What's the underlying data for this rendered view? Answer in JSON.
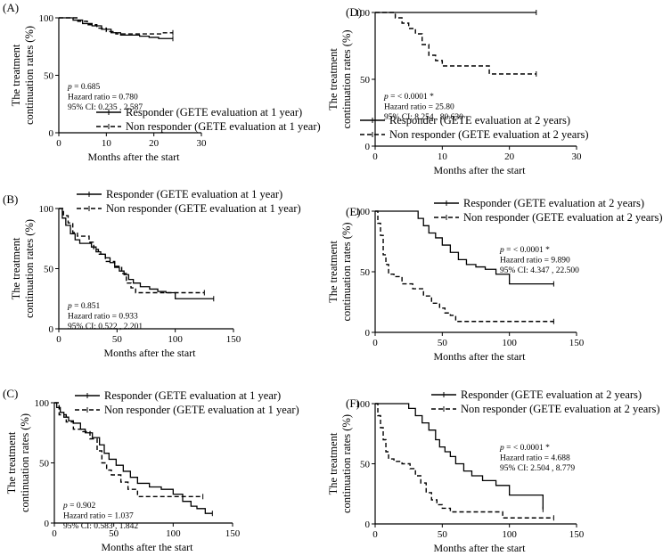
{
  "chart_data": [
    {
      "panel": "(A)",
      "type": "line",
      "step": true,
      "xlabel": "Months after the start",
      "ylabel": [
        "The treatment",
        "continuation rates (%)"
      ],
      "xlim": [
        0,
        30
      ],
      "ylim": [
        0,
        100
      ],
      "xticks": [
        0,
        10,
        20,
        30
      ],
      "yticks": [
        0,
        50,
        100
      ],
      "legend_loc": "bottom-left",
      "stats": [
        "p = 0.685",
        "Hazard ratio = 0.780",
        "95% CI:  0.235 , 2.587"
      ],
      "series": [
        {
          "name": "Responder (GETE evaluation at 1 year)",
          "style": "solid",
          "x": [
            0,
            3,
            5,
            7,
            9,
            11,
            13,
            15,
            17,
            19,
            21,
            24
          ],
          "y": [
            100,
            98,
            95,
            93,
            90,
            87,
            85,
            85,
            84,
            83,
            82,
            82
          ]
        },
        {
          "name": "Non responder (GETE evaluation at 1 year)",
          "style": "dashed",
          "x": [
            0,
            2,
            4,
            6,
            8,
            10,
            12,
            18,
            20,
            22,
            24
          ],
          "y": [
            100,
            100,
            97,
            94,
            91,
            88,
            86,
            86,
            86,
            87,
            87
          ]
        }
      ]
    },
    {
      "panel": "(B)",
      "type": "line",
      "step": true,
      "xlabel": "Months after the start",
      "ylabel": [
        "The treatment",
        "continuation rates (%)"
      ],
      "xlim": [
        0,
        150
      ],
      "ylim": [
        0,
        100
      ],
      "xticks": [
        0,
        50,
        100,
        150
      ],
      "yticks": [
        0,
        50,
        100
      ],
      "legend_loc": "top-right",
      "stats": [
        "p = 0.851",
        "Hazard ratio = 0.933",
        "95% CI:  0.522 , 2.201"
      ],
      "series": [
        {
          "name": "Responder (GETE evaluation at 1 year)",
          "style": "solid",
          "x": [
            0,
            3,
            6,
            10,
            14,
            18,
            24,
            28,
            32,
            36,
            40,
            44,
            48,
            52,
            56,
            60,
            64,
            70,
            78,
            85,
            92,
            100,
            110,
            120,
            133
          ],
          "y": [
            100,
            92,
            86,
            79,
            74,
            71,
            71,
            68,
            64,
            62,
            59,
            55,
            51,
            48,
            45,
            41,
            38,
            35,
            33,
            31,
            30,
            25,
            25,
            25,
            25
          ]
        },
        {
          "name": "Non responder (GETE evaluation at 1 year)",
          "style": "dashed",
          "x": [
            0,
            4,
            8,
            12,
            16,
            22,
            26,
            30,
            34,
            40,
            48,
            54,
            58,
            62,
            66,
            76,
            86,
            100,
            112,
            125
          ],
          "y": [
            100,
            94,
            88,
            80,
            77,
            77,
            72,
            66,
            62,
            56,
            52,
            46,
            38,
            34,
            30,
            30,
            30,
            30,
            30,
            30
          ]
        }
      ]
    },
    {
      "panel": "(C)",
      "type": "line",
      "step": true,
      "xlabel": "Months after the start",
      "ylabel": [
        "The treatment",
        "continuation rates (%)"
      ],
      "xlim": [
        0,
        150
      ],
      "ylim": [
        0,
        100
      ],
      "xticks": [
        0,
        50,
        100,
        150
      ],
      "yticks": [
        0,
        50,
        100
      ],
      "legend_loc": "top-right",
      "stats": [
        "p = 0.902",
        "Hazard ratio = 1.037",
        "95% CI:  0.583 , 1.842"
      ],
      "series": [
        {
          "name": "Responder (GETE evaluation at 1 year)",
          "style": "solid",
          "x": [
            0,
            2,
            5,
            8,
            12,
            16,
            22,
            26,
            32,
            38,
            42,
            46,
            52,
            58,
            64,
            70,
            80,
            90,
            100,
            108,
            115,
            120,
            127,
            133
          ],
          "y": [
            100,
            96,
            92,
            88,
            85,
            83,
            78,
            75,
            71,
            65,
            58,
            53,
            48,
            43,
            38,
            33,
            30,
            28,
            24,
            18,
            14,
            12,
            8,
            8
          ]
        },
        {
          "name": "Non responder (GETE evaluation at 1 year)",
          "style": "dashed",
          "x": [
            0,
            4,
            10,
            16,
            24,
            30,
            36,
            40,
            44,
            48,
            56,
            62,
            70,
            100,
            110,
            125
          ],
          "y": [
            100,
            90,
            84,
            78,
            76,
            70,
            60,
            50,
            44,
            40,
            34,
            28,
            22,
            22,
            22,
            22
          ]
        }
      ]
    },
    {
      "panel": "(D)",
      "type": "line",
      "step": true,
      "xlabel": "Months after the start",
      "ylabel": [
        "The treatment",
        "continuation rates (%)"
      ],
      "xlim": [
        0,
        30
      ],
      "ylim": [
        0,
        100
      ],
      "xticks": [
        0,
        10,
        20,
        30
      ],
      "yticks": [
        0,
        50,
        100
      ],
      "legend_loc": "bottom-left",
      "stats": [
        "p = < 0.0001 *",
        "Hazard ratio = 25.80",
        "95% CI:  8.254 , 80.630"
      ],
      "series": [
        {
          "name": "Responder (GETE evaluation at 2 years)",
          "style": "solid",
          "x": [
            0,
            24
          ],
          "y": [
            100,
            100
          ]
        },
        {
          "name": "Non responder (GETE evaluation at 2 years)",
          "style": "dashed",
          "x": [
            0,
            2,
            3,
            4,
            5,
            6,
            7,
            8,
            9,
            10,
            15,
            17,
            24
          ],
          "y": [
            100,
            100,
            96,
            92,
            88,
            84,
            76,
            68,
            64,
            60,
            60,
            54,
            54
          ]
        }
      ]
    },
    {
      "panel": "(E)",
      "type": "line",
      "step": true,
      "xlabel": "Months after the start",
      "ylabel": [
        "The treatment",
        "continuation rates (%)"
      ],
      "xlim": [
        0,
        150
      ],
      "ylim": [
        0,
        100
      ],
      "xticks": [
        0,
        50,
        100,
        150
      ],
      "yticks": [
        0,
        50,
        100
      ],
      "legend_loc": "top-right",
      "stats": [
        "p = < 0.0001 *",
        "Hazard ratio = 9.890",
        "95% CI:  4.347 , 22.500"
      ],
      "series": [
        {
          "name": "Responder (GETE evaluation at 2 years)",
          "style": "solid",
          "x": [
            0,
            28,
            32,
            36,
            40,
            45,
            50,
            56,
            62,
            68,
            75,
            82,
            90,
            100,
            110,
            120,
            133
          ],
          "y": [
            100,
            100,
            94,
            88,
            82,
            78,
            72,
            66,
            60,
            56,
            54,
            52,
            48,
            40,
            40,
            40,
            40
          ]
        },
        {
          "name": "Non responder (GETE evaluation at 2 years)",
          "style": "dashed",
          "x": [
            0,
            2,
            4,
            6,
            8,
            10,
            14,
            20,
            28,
            36,
            42,
            48,
            52,
            56,
            60,
            80,
            100,
            133
          ],
          "y": [
            100,
            90,
            80,
            64,
            56,
            48,
            46,
            40,
            36,
            30,
            24,
            20,
            16,
            14,
            9,
            9,
            9,
            9
          ]
        }
      ]
    },
    {
      "panel": "(F)",
      "type": "line",
      "step": true,
      "xlabel": "Months after the start",
      "ylabel": [
        "The treatment",
        "continuation rates (%)"
      ],
      "xlim": [
        0,
        150
      ],
      "ylim": [
        0,
        100
      ],
      "xticks": [
        0,
        50,
        100,
        150
      ],
      "yticks": [
        0,
        50,
        100
      ],
      "legend_loc": "top-right",
      "stats": [
        "p = < 0.0001 *",
        "Hazard ratio = 4.688",
        "95% CI:  2.504 , 8.779"
      ],
      "series": [
        {
          "name": "Responder (GETE evaluation at 2 years)",
          "style": "solid",
          "x": [
            0,
            20,
            25,
            30,
            35,
            40,
            45,
            48,
            52,
            56,
            60,
            66,
            72,
            80,
            90,
            100,
            110,
            120,
            125
          ],
          "y": [
            100,
            100,
            96,
            90,
            84,
            78,
            70,
            64,
            60,
            56,
            50,
            44,
            40,
            36,
            32,
            24,
            24,
            24,
            12
          ]
        },
        {
          "name": "Non responder (GETE evaluation at 2 years)",
          "style": "dashed",
          "x": [
            0,
            2,
            4,
            6,
            8,
            10,
            14,
            20,
            26,
            30,
            34,
            38,
            42,
            46,
            50,
            56,
            70,
            95,
            133
          ],
          "y": [
            100,
            90,
            80,
            70,
            60,
            54,
            52,
            50,
            46,
            40,
            34,
            26,
            20,
            16,
            13,
            10,
            10,
            5,
            5
          ]
        }
      ]
    }
  ]
}
